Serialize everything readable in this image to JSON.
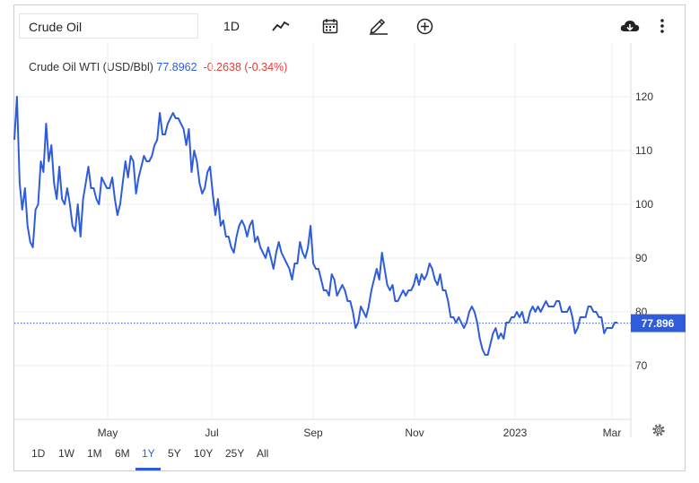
{
  "toolbar": {
    "search_value": "Crude Oil",
    "interval_label": "1D",
    "icons": [
      "line-chart-icon",
      "calendar-icon",
      "draw-pencil-icon",
      "add-circle-icon",
      "cloud-download-icon",
      "more-vertical-icon"
    ]
  },
  "legend": {
    "name": "Crude Oil WTI (USD/Bbl)",
    "price": "77.8962",
    "change": "-0.2638 (-0.34%)"
  },
  "periods": [
    "1D",
    "1W",
    "1M",
    "6M",
    "1Y",
    "5Y",
    "10Y",
    "25Y",
    "All"
  ],
  "active_period": "1Y",
  "last_value_label": "77.896",
  "colors": {
    "line": "#2e5cdc",
    "accent": "#2e5cdc",
    "negative": "#e0403a",
    "grid": "#ececec"
  },
  "chart_data": {
    "type": "line",
    "title": "Crude Oil WTI (USD/Bbl)",
    "x_tick_labels": [
      "May",
      "Jul",
      "Sep",
      "Nov",
      "2023",
      "Mar"
    ],
    "y_tick_labels": [
      "70",
      "80",
      "90",
      "100",
      "110",
      "120"
    ],
    "ylim": [
      62,
      124
    ],
    "grid": true,
    "last_value": 77.896,
    "series": [
      {
        "values": [
          112,
          120,
          104,
          99,
          103,
          96,
          93,
          92,
          99,
          100,
          108,
          106,
          115,
          108,
          111,
          104,
          101,
          107,
          101,
          100,
          103,
          100,
          96,
          95,
          100,
          94,
          101,
          104,
          107,
          103,
          103,
          101,
          100,
          105,
          104,
          103,
          103,
          105,
          101,
          98,
          100,
          104,
          108,
          105,
          109,
          108,
          102,
          105,
          107,
          109,
          108,
          108,
          109,
          111,
          112,
          117,
          113,
          113,
          115,
          116,
          117,
          116,
          116,
          115,
          114,
          111,
          114,
          106,
          110,
          108,
          104,
          102,
          103,
          106,
          107,
          102,
          98,
          101,
          96,
          97,
          94,
          94,
          92,
          91,
          94,
          96,
          97,
          96,
          94,
          96,
          97,
          93,
          94,
          92,
          91,
          90,
          92,
          90,
          88,
          91,
          93,
          91,
          90,
          89,
          88,
          86,
          89,
          89,
          93,
          91,
          90,
          92,
          96,
          89,
          88,
          88,
          86,
          84,
          84,
          83,
          87,
          86,
          83,
          84,
          85,
          84,
          82,
          82,
          80,
          77,
          78,
          81,
          80,
          79,
          81,
          84,
          86,
          88,
          86,
          91,
          88,
          85,
          84,
          85,
          82,
          82,
          83,
          84,
          83,
          84,
          84,
          85,
          87,
          85,
          87,
          86,
          87,
          89,
          88,
          86,
          85,
          87,
          84,
          84,
          82,
          79,
          79,
          78,
          79,
          78,
          77,
          78,
          80,
          81,
          80,
          78,
          75,
          73,
          72,
          72,
          74,
          76,
          77,
          75,
          76,
          75,
          78,
          78,
          79,
          79,
          80,
          79,
          80,
          78,
          78,
          80,
          81,
          80,
          81,
          80,
          81,
          82,
          81,
          81,
          81,
          82,
          82,
          80,
          80,
          80,
          81,
          79,
          76,
          77,
          79,
          79,
          79,
          81,
          81,
          80,
          80,
          79,
          79,
          76,
          77,
          77,
          77,
          78,
          78
        ]
      }
    ]
  }
}
